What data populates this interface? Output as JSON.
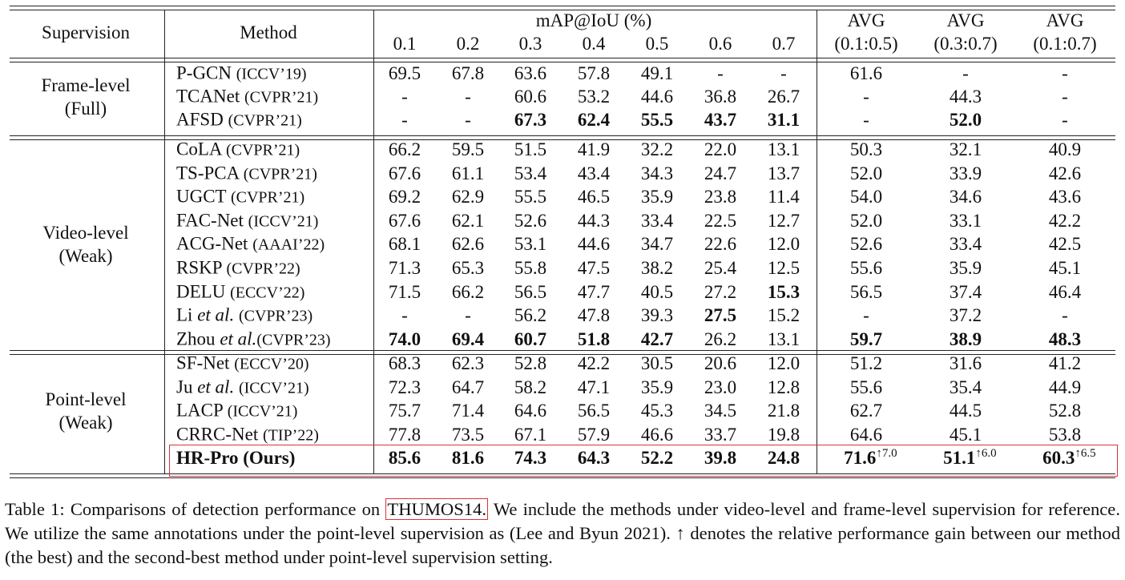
{
  "header": {
    "supervision": "Supervision",
    "method": "Method",
    "metric": "mAP@IoU (%)",
    "ious": [
      "0.1",
      "0.2",
      "0.3",
      "0.4",
      "0.5",
      "0.6",
      "0.7"
    ],
    "avg_titles": [
      "AVG",
      "AVG",
      "AVG"
    ],
    "avg_ranges": [
      "(0.1:0.5)",
      "(0.3:0.7)",
      "(0.1:0.7)"
    ]
  },
  "groups": [
    {
      "label": [
        "Frame-level",
        "(Full)"
      ],
      "rows": [
        {
          "name": "P-GCN",
          "venue": "(ICCV’19)",
          "cells": [
            "69.5",
            "67.8",
            "63.6",
            "57.8",
            "49.1",
            "-",
            "-",
            "61.6",
            "-",
            "-"
          ],
          "bold": []
        },
        {
          "name": "TCANet",
          "venue": "(CVPR’21)",
          "cells": [
            "-",
            "-",
            "60.6",
            "53.2",
            "44.6",
            "36.8",
            "26.7",
            "-",
            "44.3",
            "-"
          ],
          "bold": []
        },
        {
          "name": "AFSD",
          "venue": "(CVPR’21)",
          "cells": [
            "-",
            "-",
            "67.3",
            "62.4",
            "55.5",
            "43.7",
            "31.1",
            "-",
            "52.0",
            "-"
          ],
          "bold": [
            2,
            3,
            4,
            5,
            6,
            8
          ]
        }
      ]
    },
    {
      "label": [
        "Video-level",
        "(Weak)"
      ],
      "rows": [
        {
          "name": "CoLA",
          "venue": "(CVPR’21)",
          "cells": [
            "66.2",
            "59.5",
            "51.5",
            "41.9",
            "32.2",
            "22.0",
            "13.1",
            "50.3",
            "32.1",
            "40.9"
          ],
          "bold": []
        },
        {
          "name": "TS-PCA",
          "venue": "(CVPR’21)",
          "cells": [
            "67.6",
            "61.1",
            "53.4",
            "43.4",
            "34.3",
            "24.7",
            "13.7",
            "52.0",
            "33.9",
            "42.6"
          ],
          "bold": []
        },
        {
          "name": "UGCT",
          "venue": "(CVPR’21)",
          "cells": [
            "69.2",
            "62.9",
            "55.5",
            "46.5",
            "35.9",
            "23.8",
            "11.4",
            "54.0",
            "34.6",
            "43.6"
          ],
          "bold": []
        },
        {
          "name": "FAC-Net",
          "venue": "(ICCV’21)",
          "cells": [
            "67.6",
            "62.1",
            "52.6",
            "44.3",
            "33.4",
            "22.5",
            "12.7",
            "52.0",
            "33.1",
            "42.2"
          ],
          "bold": []
        },
        {
          "name": "ACG-Net",
          "venue": "(AAAI’22)",
          "cells": [
            "68.1",
            "62.6",
            "53.1",
            "44.6",
            "34.7",
            "22.6",
            "12.0",
            "52.6",
            "33.4",
            "42.5"
          ],
          "bold": []
        },
        {
          "name": "RSKP",
          "venue": "(CVPR’22)",
          "cells": [
            "71.3",
            "65.3",
            "55.8",
            "47.5",
            "38.2",
            "25.4",
            "12.5",
            "55.6",
            "35.9",
            "45.1"
          ],
          "bold": []
        },
        {
          "name": "DELU",
          "venue": "(ECCV’22)",
          "cells": [
            "71.5",
            "66.2",
            "56.5",
            "47.7",
            "40.5",
            "27.2",
            "15.3",
            "56.5",
            "37.4",
            "46.4"
          ],
          "bold": [
            6
          ]
        },
        {
          "name": "Li",
          "italic": "et al.",
          "venue": "(CVPR’23)",
          "cells": [
            "-",
            "-",
            "56.2",
            "47.8",
            "39.3",
            "27.5",
            "15.2",
            "-",
            "37.2",
            "-"
          ],
          "bold": [
            5
          ]
        },
        {
          "name": "Zhou",
          "italic": "et al.",
          "venue": "(CVPR’23)",
          "cells": [
            "74.0",
            "69.4",
            "60.7",
            "51.8",
            "42.7",
            "26.2",
            "13.1",
            "59.7",
            "38.9",
            "48.3"
          ],
          "bold": [
            0,
            1,
            2,
            3,
            4,
            7,
            8,
            9
          ]
        }
      ]
    },
    {
      "label": [
        "Point-level",
        "(Weak)"
      ],
      "rows": [
        {
          "name": "SF-Net",
          "venue": "(ECCV’20)",
          "cells": [
            "68.3",
            "62.3",
            "52.8",
            "42.2",
            "30.5",
            "20.6",
            "12.0",
            "51.2",
            "31.6",
            "41.2"
          ],
          "bold": []
        },
        {
          "name": "Ju",
          "italic": "et al.",
          "venue": "(ICCV’21)",
          "cells": [
            "72.3",
            "64.7",
            "58.2",
            "47.1",
            "35.9",
            "23.0",
            "12.8",
            "55.6",
            "35.4",
            "44.9"
          ],
          "bold": []
        },
        {
          "name": "LACP",
          "venue": "(ICCV’21)",
          "cells": [
            "75.7",
            "71.4",
            "64.6",
            "56.5",
            "45.3",
            "34.5",
            "21.8",
            "62.7",
            "44.5",
            "52.8"
          ],
          "bold": []
        },
        {
          "name": "CRRC-Net",
          "venue": "(TIP’22)",
          "cells": [
            "77.8",
            "73.5",
            "67.1",
            "57.9",
            "46.6",
            "33.7",
            "19.8",
            "64.6",
            "45.1",
            "53.8"
          ],
          "bold": []
        },
        {
          "name": "HR-Pro (Ours)",
          "cells": [
            "85.6",
            "81.6",
            "74.3",
            "64.3",
            "52.2",
            "39.8",
            "24.8",
            "71.6",
            "51.1",
            "60.3"
          ],
          "bold": [
            0,
            1,
            2,
            3,
            4,
            5,
            6,
            7,
            8,
            9
          ],
          "highlight": true,
          "gains": [
            "↑7.0",
            "↑6.0",
            "↑6.5"
          ]
        }
      ]
    }
  ],
  "caption": {
    "before": "Table 1: Comparisons of detection performance on ",
    "boxed": "THUMOS14.",
    "after": " We include the methods under video-level and frame-level supervision for reference. We utilize the same annotations under the point-level supervision as  (Lee and Byun 2021). ↑ denotes the relative performance gain between our method (the best) and the second-best method under point-level supervision setting."
  }
}
